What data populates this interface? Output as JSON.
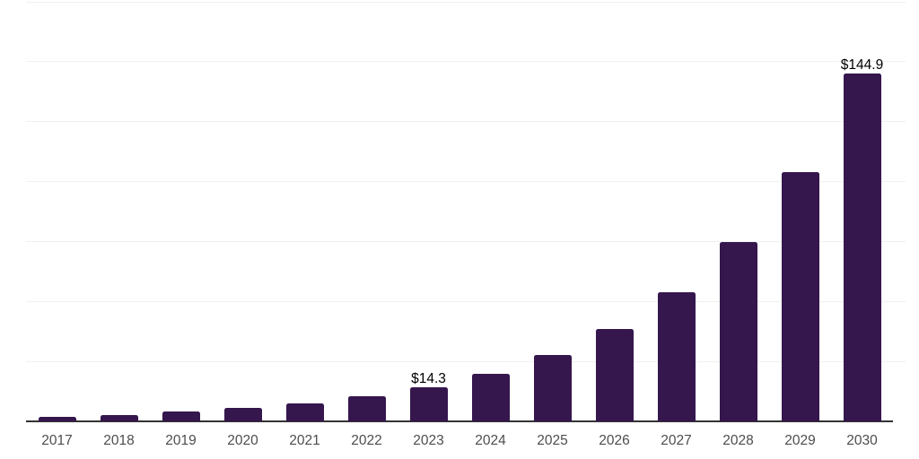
{
  "chart_data": {
    "type": "bar",
    "title": "",
    "xlabel": "",
    "ylabel": "",
    "categories": [
      "2017",
      "2018",
      "2019",
      "2020",
      "2021",
      "2022",
      "2023",
      "2024",
      "2025",
      "2026",
      "2027",
      "2028",
      "2029",
      "2030"
    ],
    "values": [
      2.0,
      2.8,
      4.2,
      5.5,
      7.6,
      10.3,
      14.3,
      19.9,
      27.7,
      38.6,
      53.7,
      74.7,
      104.0,
      144.9
    ],
    "data_labels": [
      "",
      "",
      "",
      "",
      "",
      "",
      "$14.3",
      "",
      "",
      "",
      "",
      "",
      "",
      "$144.9"
    ],
    "ylim": [
      0,
      175
    ],
    "grid_step": 25,
    "grid": true,
    "legend": false,
    "y_tick_labels": [],
    "colors": {
      "bar": "#35164d",
      "grid_line": "#f0f0f0",
      "axis_line": "#333333",
      "tick_label": "#4d4d4d",
      "data_label": "#000000",
      "background": "#ffffff"
    }
  }
}
